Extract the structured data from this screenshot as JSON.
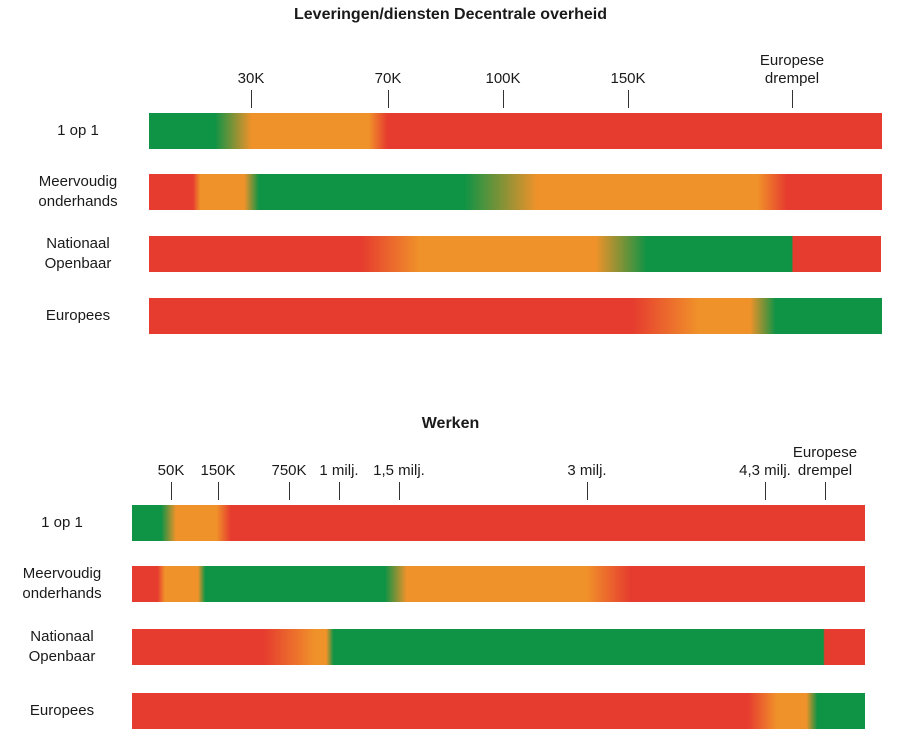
{
  "chart_data": [
    {
      "type": "heatmap",
      "title": "Leveringen/diensten Decentrale overheid",
      "ticks": [
        {
          "label": "30K",
          "at": 0.139
        },
        {
          "label": "70K",
          "at": 0.326
        },
        {
          "label": "100K",
          "at": 0.483
        },
        {
          "label": "150K",
          "at": 0.653
        },
        {
          "label": "Europese\ndrempel",
          "at": 0.877
        }
      ],
      "rows": [
        {
          "label": "1 op 1",
          "stops": [
            {
              "c": "green",
              "p": 0
            },
            {
              "c": "green",
              "p": 0.09
            },
            {
              "c": "orange",
              "p": 0.14
            },
            {
              "c": "orange",
              "p": 0.3
            },
            {
              "c": "red",
              "p": 0.325
            },
            {
              "c": "red",
              "p": 1
            }
          ]
        },
        {
          "label": "Meervoudig\nonderhands",
          "stops": [
            {
              "c": "red",
              "p": 0
            },
            {
              "c": "red",
              "p": 0.06
            },
            {
              "c": "orange",
              "p": 0.07
            },
            {
              "c": "orange",
              "p": 0.13
            },
            {
              "c": "green",
              "p": 0.15
            },
            {
              "c": "green",
              "p": 0.43
            },
            {
              "c": "orange",
              "p": 0.53
            },
            {
              "c": "orange",
              "p": 0.83
            },
            {
              "c": "red",
              "p": 0.87
            },
            {
              "c": "red",
              "p": 1
            }
          ]
        },
        {
          "label": "Nationaal\nOpenbaar",
          "stops": [
            {
              "c": "red",
              "p": 0
            },
            {
              "c": "red",
              "p": 0.29
            },
            {
              "c": "orange",
              "p": 0.37
            },
            {
              "c": "orange",
              "p": 0.61
            },
            {
              "c": "green",
              "p": 0.68
            },
            {
              "c": "green",
              "p": 0.878
            },
            {
              "c": "red",
              "p": 0.88
            },
            {
              "c": "red",
              "p": 1
            }
          ]
        },
        {
          "label": "Europees",
          "stops": [
            {
              "c": "red",
              "p": 0
            },
            {
              "c": "red",
              "p": 0.66
            },
            {
              "c": "orange",
              "p": 0.75
            },
            {
              "c": "orange",
              "p": 0.82
            },
            {
              "c": "green",
              "p": 0.855
            },
            {
              "c": "green",
              "p": 1
            }
          ]
        }
      ]
    },
    {
      "type": "heatmap",
      "title": "Werken",
      "ticks": [
        {
          "label": "50K",
          "at": 0.053
        },
        {
          "label": "150K",
          "at": 0.118
        },
        {
          "label": "750K",
          "at": 0.214
        },
        {
          "label": "1 milj.",
          "at": 0.282
        },
        {
          "label": "1,5 milj.",
          "at": 0.364
        },
        {
          "label": "3 milj.",
          "at": 0.621
        },
        {
          "label": "4,3 milj.",
          "at": 0.863
        },
        {
          "label": "Europese\ndrempel",
          "at": 0.946
        }
      ],
      "rows": [
        {
          "label": "1 op 1",
          "stops": [
            {
              "c": "green",
              "p": 0
            },
            {
              "c": "green",
              "p": 0.04
            },
            {
              "c": "orange",
              "p": 0.06
            },
            {
              "c": "orange",
              "p": 0.115
            },
            {
              "c": "red",
              "p": 0.135
            },
            {
              "c": "red",
              "p": 1
            }
          ]
        },
        {
          "label": "Meervoudig\nonderhands",
          "stops": [
            {
              "c": "red",
              "p": 0
            },
            {
              "c": "red",
              "p": 0.035
            },
            {
              "c": "orange",
              "p": 0.045
            },
            {
              "c": "orange",
              "p": 0.09
            },
            {
              "c": "green",
              "p": 0.1
            },
            {
              "c": "green",
              "p": 0.345
            },
            {
              "c": "orange",
              "p": 0.375
            },
            {
              "c": "orange",
              "p": 0.62
            },
            {
              "c": "red",
              "p": 0.68
            },
            {
              "c": "red",
              "p": 1
            }
          ]
        },
        {
          "label": "Nationaal\nOpenbaar",
          "stops": [
            {
              "c": "red",
              "p": 0
            },
            {
              "c": "red",
              "p": 0.18
            },
            {
              "c": "orange",
              "p": 0.25
            },
            {
              "c": "orange",
              "p": 0.265
            },
            {
              "c": "green",
              "p": 0.275
            },
            {
              "c": "green",
              "p": 0.943
            },
            {
              "c": "red",
              "p": 0.945
            },
            {
              "c": "red",
              "p": 1
            }
          ]
        },
        {
          "label": "Europees",
          "stops": [
            {
              "c": "red",
              "p": 0
            },
            {
              "c": "red",
              "p": 0.84
            },
            {
              "c": "orange",
              "p": 0.88
            },
            {
              "c": "orange",
              "p": 0.92
            },
            {
              "c": "green",
              "p": 0.935
            },
            {
              "c": "green",
              "p": 1
            }
          ]
        }
      ]
    }
  ],
  "colors": {
    "green": "#0f9345",
    "orange": "#f0922a",
    "red": "#e63c2f"
  }
}
